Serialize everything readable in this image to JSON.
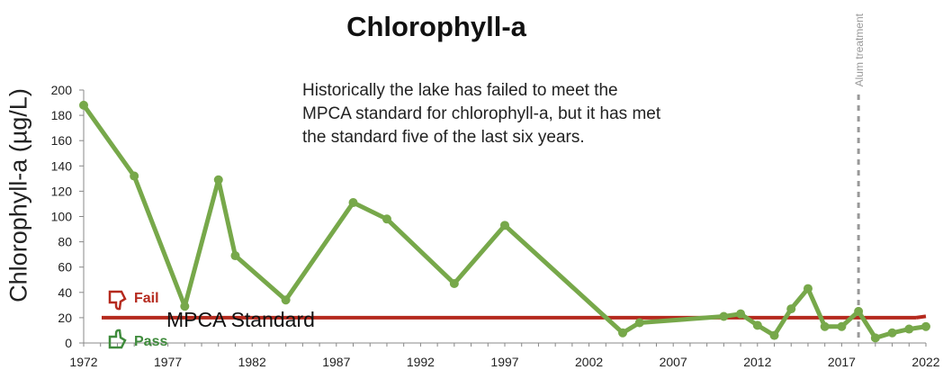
{
  "chart_data": {
    "type": "line",
    "title": "Chlorophyll-a",
    "ylabel": "Chlorophyll-a  (µg/L)",
    "xlabel": "",
    "xlim": [
      1972,
      2022
    ],
    "ylim": [
      0,
      200
    ],
    "x_ticks": [
      1972,
      1977,
      1982,
      1987,
      1992,
      1997,
      2002,
      2007,
      2012,
      2017,
      2022
    ],
    "y_ticks": [
      0,
      20,
      40,
      60,
      80,
      100,
      120,
      140,
      160,
      180,
      200
    ],
    "grid": false,
    "series": [
      {
        "color": "#77a84a",
        "points": [
          {
            "x": 1972,
            "y": 188
          },
          {
            "x": 1975,
            "y": 132
          },
          {
            "x": 1978,
            "y": 29
          },
          {
            "x": 1980,
            "y": 129
          },
          {
            "x": 1981,
            "y": 69
          },
          {
            "x": 1984,
            "y": 34
          },
          {
            "x": 1988,
            "y": 111
          },
          {
            "x": 1990,
            "y": 98
          },
          {
            "x": 1994,
            "y": 47
          },
          {
            "x": 1997,
            "y": 93
          },
          {
            "x": 2004,
            "y": 8
          },
          {
            "x": 2005,
            "y": 16
          },
          {
            "x": 2010,
            "y": 21
          },
          {
            "x": 2011,
            "y": 23
          },
          {
            "x": 2012,
            "y": 14
          },
          {
            "x": 2013,
            "y": 6
          },
          {
            "x": 2014,
            "y": 27
          },
          {
            "x": 2015,
            "y": 43
          },
          {
            "x": 2016,
            "y": 13
          },
          {
            "x": 2017,
            "y": 13
          },
          {
            "x": 2018,
            "y": 25
          },
          {
            "x": 2019,
            "y": 4
          },
          {
            "x": 2020,
            "y": 8
          },
          {
            "x": 2021,
            "y": 11
          },
          {
            "x": 2022,
            "y": 13
          }
        ]
      }
    ],
    "standard": {
      "label": "MPCA Standard",
      "value": 20,
      "color": "#b52a1e"
    },
    "fail_label": "Fail",
    "pass_label": "Pass",
    "fail_color": "#b52a1e",
    "pass_color": "#3f8b3c",
    "treatment": {
      "label": "Alum treatment",
      "x": 2018,
      "color": "#999999"
    },
    "annotation": "Historically the lake has failed to meet the MPCA standard for chlorophyll-a, but it has met the standard five of the last six years."
  }
}
